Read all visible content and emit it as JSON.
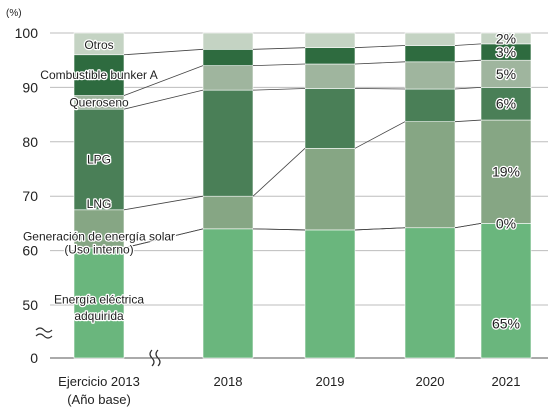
{
  "chart_data": {
    "type": "bar",
    "stacked": true,
    "unit": "(%)",
    "categories": [
      "Ejercicio 2013\n(Año base)",
      "2018",
      "2019",
      "2020",
      "2021"
    ],
    "ylim": [
      0,
      100
    ],
    "yticks": [
      "0",
      "50",
      "60",
      "70",
      "80",
      "90",
      "100"
    ],
    "axis_break": true,
    "series": [
      {
        "name": "Energía eléctrica\nadquirida",
        "color": "#6ab67d",
        "values": [
          60.5,
          64,
          63.8,
          64.2,
          65
        ]
      },
      {
        "name": "Generación de energía solar\n(Uso interno)",
        "color": "#6ab67d",
        "values": [
          0,
          0,
          0,
          0,
          0
        ]
      },
      {
        "name": "LNG",
        "color": "#86a684",
        "values": [
          7,
          6,
          15,
          19.5,
          19
        ]
      },
      {
        "name": "LPG",
        "color": "#4a7f57",
        "values": [
          18.5,
          19.5,
          11,
          6,
          6
        ]
      },
      {
        "name": "Queroseno",
        "color": "#9fb59e",
        "values": [
          2.5,
          4.5,
          4.5,
          5,
          5
        ]
      },
      {
        "name": "Combustible bunker A",
        "color": "#2e6b3f",
        "values": [
          7.5,
          3,
          3,
          3,
          3
        ]
      },
      {
        "name": "Otros",
        "color": "#c4d3c3",
        "values": [
          4,
          3,
          2.7,
          2.3,
          2
        ]
      }
    ],
    "data_labels_2021": [
      "65%",
      "0%",
      "19%",
      "6%",
      "5%",
      "3%",
      "2%"
    ]
  }
}
